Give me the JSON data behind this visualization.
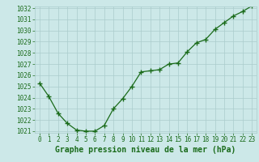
{
  "x": [
    0,
    1,
    2,
    3,
    4,
    5,
    6,
    7,
    8,
    9,
    10,
    11,
    12,
    13,
    14,
    15,
    16,
    17,
    18,
    19,
    20,
    21,
    22,
    23
  ],
  "y": [
    1025.3,
    1024.1,
    1022.6,
    1021.7,
    1021.1,
    1021.0,
    1021.0,
    1021.5,
    1023.0,
    1023.9,
    1025.0,
    1026.3,
    1026.4,
    1026.5,
    1027.0,
    1027.1,
    1028.1,
    1028.9,
    1029.2,
    1030.1,
    1030.7,
    1031.3,
    1031.7,
    1032.2
  ],
  "line_color": "#1a6b1a",
  "marker": "+",
  "marker_size": 4,
  "marker_linewidth": 1.0,
  "bg_color": "#cce8e8",
  "grid_color": "#aacccc",
  "title": "Graphe pression niveau de la mer (hPa)",
  "ylim": [
    1021,
    1032
  ],
  "xlim": [
    -0.5,
    23.5
  ],
  "yticks": [
    1021,
    1022,
    1023,
    1024,
    1025,
    1026,
    1027,
    1028,
    1029,
    1030,
    1031,
    1032
  ],
  "xticks": [
    0,
    1,
    2,
    3,
    4,
    5,
    6,
    7,
    8,
    9,
    10,
    11,
    12,
    13,
    14,
    15,
    16,
    17,
    18,
    19,
    20,
    21,
    22,
    23
  ],
  "tick_color": "#1a6b1a",
  "title_color": "#1a6b1a",
  "title_fontsize": 7,
  "tick_fontsize": 5.5,
  "linewidth": 0.9
}
